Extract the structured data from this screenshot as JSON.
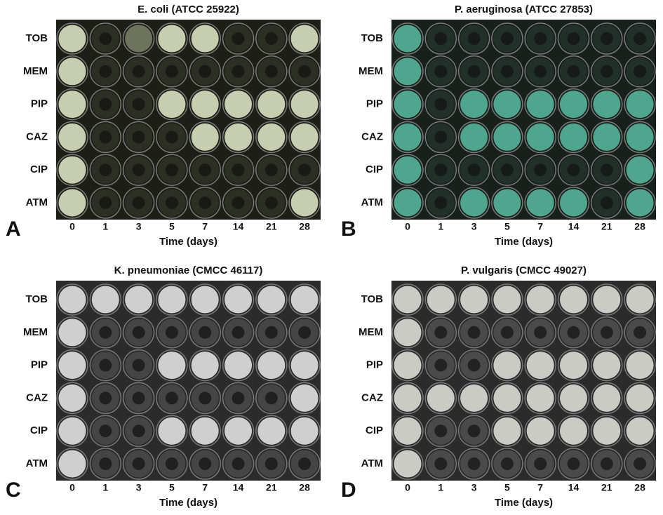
{
  "panels": [
    {
      "letter": "A",
      "title": "E. coli (ATCC 25922)",
      "rows": [
        "TOB",
        "MEM",
        "PIP",
        "CAZ",
        "CIP",
        "ATM"
      ],
      "columns": [
        "0",
        "1",
        "3",
        "5",
        "7",
        "14",
        "21",
        "28"
      ],
      "x_label": "Time (days)"
    },
    {
      "letter": "B",
      "title": "P. aeruginosa (ATCC 27853)",
      "rows": [
        "TOB",
        "MEM",
        "PIP",
        "CAZ",
        "CIP",
        "ATM"
      ],
      "columns": [
        "0",
        "1",
        "3",
        "5",
        "7",
        "14",
        "21",
        "28"
      ],
      "x_label": "Time (days)"
    },
    {
      "letter": "C",
      "title": "K. pneumoniae (CMCC 46117)",
      "rows": [
        "TOB",
        "MEM",
        "PIP",
        "CAZ",
        "CIP",
        "ATM"
      ],
      "columns": [
        "0",
        "1",
        "3",
        "5",
        "7",
        "14",
        "21",
        "28"
      ],
      "x_label": "Time (days)"
    },
    {
      "letter": "D",
      "title": "P. vulgaris (CMCC 49027)",
      "rows": [
        "TOB",
        "MEM",
        "PIP",
        "CAZ",
        "CIP",
        "ATM"
      ],
      "columns": [
        "0",
        "1",
        "3",
        "5",
        "7",
        "14",
        "21",
        "28"
      ],
      "x_label": "Time (days)"
    }
  ]
}
